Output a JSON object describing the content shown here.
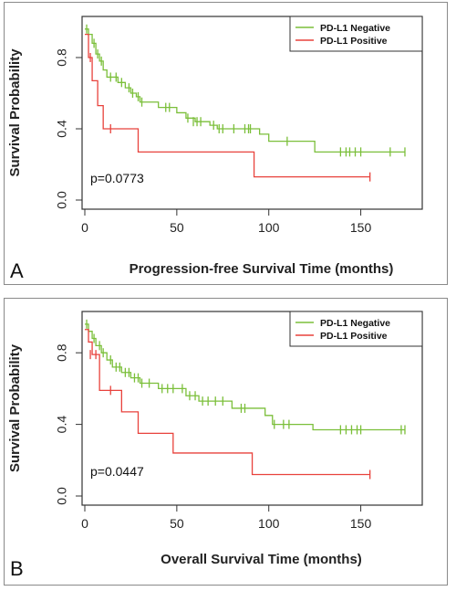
{
  "colors": {
    "negative": "#7bbf3a",
    "positive": "#e8423c",
    "frame": "#333333"
  },
  "chart_data": [
    {
      "panel_label": "A",
      "type": "line",
      "xlabel": "Progression-free Survival Time (months)",
      "ylabel": "Survival Probability",
      "p_value": "p=0.0773",
      "xlim": [
        0,
        175
      ],
      "ylim": [
        0,
        1
      ],
      "xticks": [
        0,
        50,
        100,
        150
      ],
      "yticks": [
        0.0,
        0.4,
        0.8
      ],
      "ytick_labels": [
        "0.0",
        "0.4",
        "0.8"
      ],
      "legend": [
        "PD-L1 Negative",
        "PD-L1 Positive"
      ],
      "legend_position": "top-right",
      "series": [
        {
          "name": "PD-L1 Negative",
          "color": "#7bbf3a",
          "points": [
            [
              0,
              0.96
            ],
            [
              2,
              0.93
            ],
            [
              4,
              0.88
            ],
            [
              6,
              0.82
            ],
            [
              8,
              0.78
            ],
            [
              10,
              0.73
            ],
            [
              12,
              0.69
            ],
            [
              18,
              0.66
            ],
            [
              22,
              0.63
            ],
            [
              25,
              0.6
            ],
            [
              28,
              0.58
            ],
            [
              30,
              0.55
            ],
            [
              40,
              0.52
            ],
            [
              50,
              0.49
            ],
            [
              55,
              0.46
            ],
            [
              60,
              0.44
            ],
            [
              68,
              0.42
            ],
            [
              72,
              0.4
            ],
            [
              95,
              0.37
            ],
            [
              100,
              0.33
            ],
            [
              125,
              0.27
            ],
            [
              174,
              0.27
            ]
          ],
          "censors": [
            [
              1,
              0.96
            ],
            [
              5,
              0.88
            ],
            [
              7,
              0.82
            ],
            [
              9,
              0.78
            ],
            [
              14,
              0.69
            ],
            [
              17,
              0.69
            ],
            [
              20,
              0.66
            ],
            [
              24,
              0.63
            ],
            [
              26,
              0.6
            ],
            [
              29,
              0.58
            ],
            [
              31,
              0.55
            ],
            [
              44,
              0.52
            ],
            [
              46,
              0.52
            ],
            [
              56,
              0.46
            ],
            [
              59,
              0.44
            ],
            [
              61,
              0.44
            ],
            [
              63,
              0.44
            ],
            [
              70,
              0.42
            ],
            [
              73,
              0.4
            ],
            [
              75,
              0.4
            ],
            [
              81,
              0.4
            ],
            [
              87,
              0.4
            ],
            [
              89,
              0.4
            ],
            [
              90,
              0.4
            ],
            [
              110,
              0.33
            ],
            [
              139,
              0.27
            ],
            [
              142,
              0.27
            ],
            [
              144,
              0.27
            ],
            [
              147,
              0.27
            ],
            [
              150,
              0.27
            ],
            [
              166,
              0.27
            ],
            [
              174,
              0.27
            ]
          ]
        },
        {
          "name": "PD-L1 Positive",
          "color": "#e8423c",
          "points": [
            [
              0,
              0.93
            ],
            [
              2,
              0.8
            ],
            [
              4,
              0.67
            ],
            [
              7,
              0.53
            ],
            [
              10,
              0.4
            ],
            [
              29,
              0.27
            ],
            [
              92,
              0.13
            ],
            [
              155,
              0.13
            ]
          ],
          "censors": [
            [
              3,
              0.8
            ],
            [
              14,
              0.4
            ],
            [
              155,
              0.13
            ]
          ]
        }
      ]
    },
    {
      "panel_label": "B",
      "type": "line",
      "xlabel": "Overall Survival Time (months)",
      "ylabel": "Survival Probability",
      "p_value": "p=0.0447",
      "xlim": [
        0,
        175
      ],
      "ylim": [
        0,
        1
      ],
      "xticks": [
        0,
        50,
        100,
        150
      ],
      "yticks": [
        0.0,
        0.4,
        0.8
      ],
      "ytick_labels": [
        "0.0",
        "0.4",
        "0.8"
      ],
      "legend": [
        "PD-L1 Negative",
        "PD-L1 Positive"
      ],
      "legend_position": "top-right",
      "series": [
        {
          "name": "PD-L1 Negative",
          "color": "#7bbf3a",
          "points": [
            [
              0,
              0.96
            ],
            [
              2,
              0.92
            ],
            [
              4,
              0.88
            ],
            [
              6,
              0.84
            ],
            [
              9,
              0.8
            ],
            [
              12,
              0.76
            ],
            [
              15,
              0.72
            ],
            [
              20,
              0.69
            ],
            [
              25,
              0.66
            ],
            [
              30,
              0.63
            ],
            [
              40,
              0.6
            ],
            [
              55,
              0.56
            ],
            [
              62,
              0.53
            ],
            [
              80,
              0.49
            ],
            [
              98,
              0.45
            ],
            [
              102,
              0.4
            ],
            [
              124,
              0.37
            ],
            [
              174,
              0.37
            ]
          ],
          "censors": [
            [
              1,
              0.96
            ],
            [
              5,
              0.88
            ],
            [
              8,
              0.84
            ],
            [
              10,
              0.8
            ],
            [
              14,
              0.76
            ],
            [
              17,
              0.72
            ],
            [
              19,
              0.72
            ],
            [
              22,
              0.69
            ],
            [
              24,
              0.69
            ],
            [
              27,
              0.66
            ],
            [
              29,
              0.66
            ],
            [
              31,
              0.63
            ],
            [
              35,
              0.63
            ],
            [
              42,
              0.6
            ],
            [
              45,
              0.6
            ],
            [
              48,
              0.6
            ],
            [
              53,
              0.6
            ],
            [
              57,
              0.56
            ],
            [
              60,
              0.56
            ],
            [
              64,
              0.53
            ],
            [
              67,
              0.53
            ],
            [
              71,
              0.53
            ],
            [
              75,
              0.53
            ],
            [
              85,
              0.49
            ],
            [
              87,
              0.49
            ],
            [
              103,
              0.4
            ],
            [
              108,
              0.4
            ],
            [
              111,
              0.4
            ],
            [
              139,
              0.37
            ],
            [
              142,
              0.37
            ],
            [
              145,
              0.37
            ],
            [
              148,
              0.37
            ],
            [
              150,
              0.37
            ],
            [
              172,
              0.37
            ],
            [
              174,
              0.37
            ]
          ]
        },
        {
          "name": "PD-L1 Positive",
          "color": "#e8423c",
          "points": [
            [
              0,
              0.93
            ],
            [
              2,
              0.86
            ],
            [
              4,
              0.79
            ],
            [
              8,
              0.59
            ],
            [
              20,
              0.47
            ],
            [
              29,
              0.35
            ],
            [
              48,
              0.24
            ],
            [
              91,
              0.12
            ],
            [
              155,
              0.12
            ]
          ],
          "censors": [
            [
              3,
              0.79
            ],
            [
              6,
              0.79
            ],
            [
              14,
              0.59
            ],
            [
              155,
              0.12
            ]
          ]
        }
      ]
    }
  ]
}
